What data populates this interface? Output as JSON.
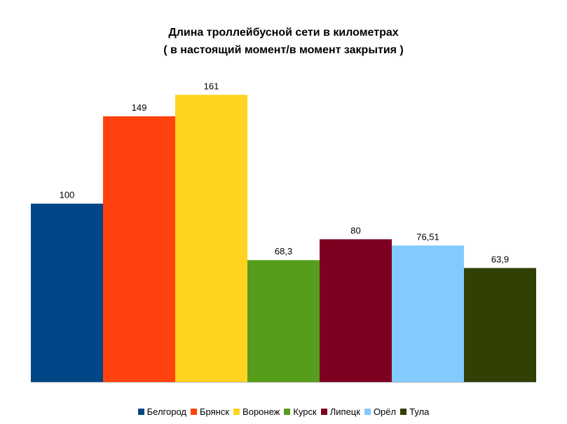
{
  "chart_data": {
    "type": "bar",
    "title": "Длина троллейбусной сети в километрах",
    "subtitle": "( в настоящий момент/в момент закрытия )",
    "categories": [
      "Белгород",
      "Брянск",
      "Воронеж",
      "Курск",
      "Липецк",
      "Орёл",
      "Тула"
    ],
    "values": [
      100,
      149,
      161,
      68.3,
      80,
      76.51,
      63.9
    ],
    "value_labels": [
      "100",
      "149",
      "161",
      "68,3",
      "80",
      "76,51",
      "63,9"
    ],
    "colors": [
      "#004586",
      "#ff420e",
      "#ffd320",
      "#579d1c",
      "#7e0021",
      "#83caff",
      "#314004"
    ],
    "ylim": [
      0,
      180
    ],
    "xlabel": "",
    "ylabel": "",
    "grid": false,
    "legend_position": "bottom"
  }
}
